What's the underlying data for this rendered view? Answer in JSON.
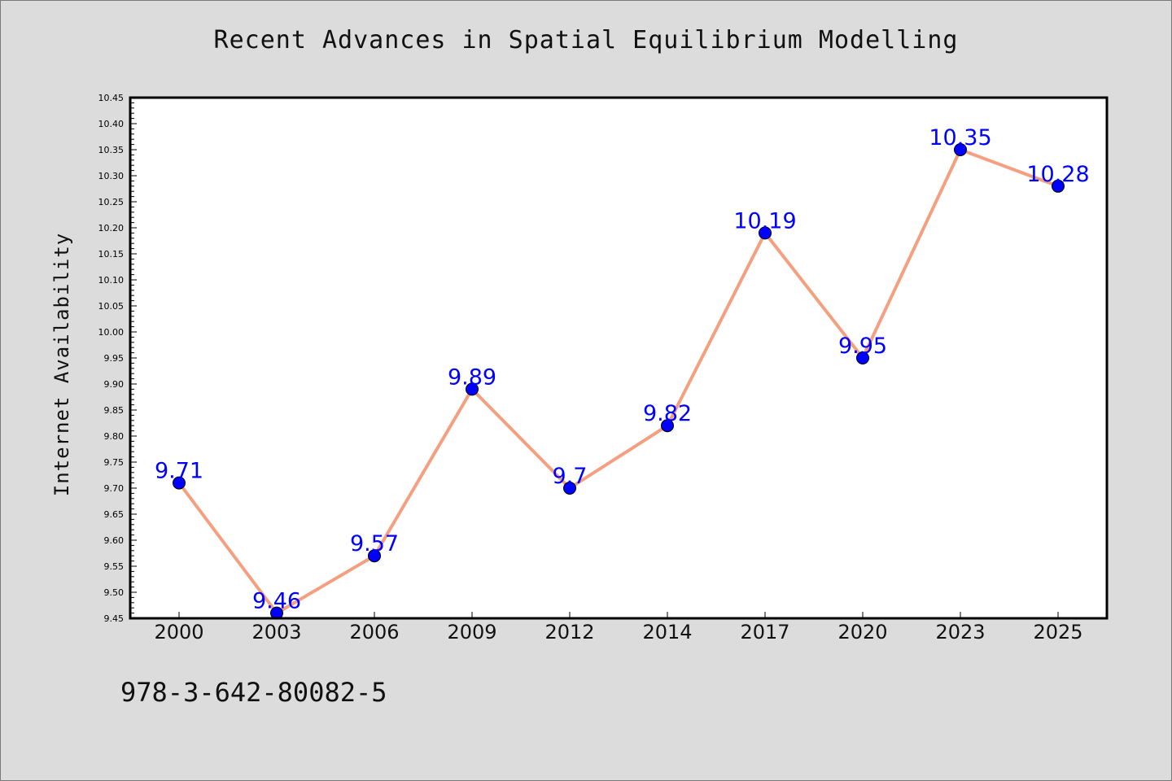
{
  "chart_data": {
    "type": "line",
    "title": "Recent Advances in Spatial Equilibrium Modelling",
    "ylabel": "Internet Availability",
    "xlabel": "",
    "categories": [
      "2000",
      "2003",
      "2006",
      "2009",
      "2012",
      "2014",
      "2017",
      "2020",
      "2023",
      "2025"
    ],
    "series": [
      {
        "values": [
          9.71,
          9.46,
          9.57,
          9.89,
          9.7,
          9.82,
          10.19,
          9.95,
          10.35,
          10.28
        ],
        "data_labels": [
          "9.71",
          "9.46",
          "9.57",
          "9.89",
          "9.7",
          "9.82",
          "10.19",
          "9.95",
          "10.35",
          "10.28"
        ],
        "line_color": "#f4a080",
        "marker_color": "#0000ff",
        "label_color": "#0000ff"
      }
    ],
    "ylim": [
      9.45,
      10.45
    ],
    "yticks": [
      "9.45",
      "9.50",
      "9.55",
      "9.60",
      "9.65",
      "9.70",
      "9.75",
      "9.80",
      "9.85",
      "9.90",
      "9.95",
      "10.00",
      "10.05",
      "10.10",
      "10.15",
      "10.20",
      "10.25",
      "10.30",
      "10.35",
      "10.40",
      "10.45"
    ],
    "grid": false,
    "legend": "none"
  },
  "footer": {
    "text": "978-3-642-80082-5"
  },
  "colors": {
    "background": "#dcdcdc",
    "plot_background": "#ffffff"
  }
}
